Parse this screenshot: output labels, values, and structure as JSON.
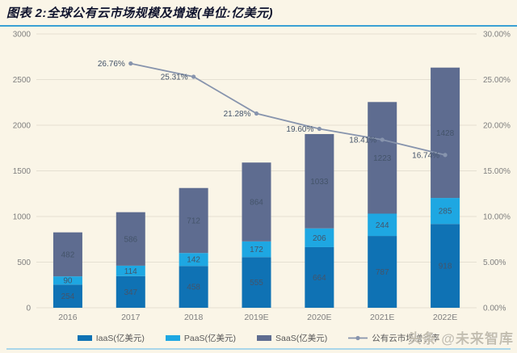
{
  "header": {
    "title": "图表 2:全球公有云市场规模及增速(单位:亿美元)"
  },
  "watermark": "头条 @未来智库",
  "colors": {
    "background": "#faf5e7",
    "title_text": "#10142e",
    "title_underline": "#3aa1d4",
    "bottom_rule": "#a9d6ea",
    "gridline": "#e5e0d2",
    "axis_label": "#7f7f7f",
    "bar_value_label": "#44546a",
    "iaas_blue": "#0f72b4",
    "paas_blue": "#1ea7e2",
    "saas_slate": "#5e6c90",
    "growth_line_gray": "#8794ad"
  },
  "chart_data": {
    "type": "bar",
    "subtype": "stacked-bars-with-growth-line",
    "title": "全球公有云市场规模及增速",
    "unit": "亿美元",
    "categories": [
      "2016",
      "2017",
      "2018",
      "2019E",
      "2020E",
      "2021E",
      "2022E"
    ],
    "series": [
      {
        "name": "IaaS(亿美元)",
        "color": "#0f72b4",
        "values": [
          254,
          347,
          458,
          555,
          664,
          787,
          918
        ]
      },
      {
        "name": "PaaS(亿美元)",
        "color": "#1ea7e2",
        "values": [
          90,
          114,
          142,
          172,
          206,
          244,
          285
        ]
      },
      {
        "name": "SaaS(亿美元)",
        "color": "#5e6c90",
        "values": [
          482,
          586,
          712,
          864,
          1033,
          1223,
          1428
        ]
      }
    ],
    "totals": [
      826,
      1047,
      1312,
      1591,
      1903,
      2254,
      2631
    ],
    "line_series": {
      "name": "公有云市场增长率",
      "color": "#8794ad",
      "x": [
        "2017",
        "2018",
        "2019E",
        "2020E",
        "2021E",
        "2022E"
      ],
      "values_pct": [
        26.76,
        25.31,
        21.28,
        19.6,
        18.41,
        16.74
      ],
      "labels": [
        "26.76%",
        "25.31%",
        "21.28%",
        "19.60%",
        "18.41%",
        "16.74%"
      ]
    },
    "left_axis": {
      "min": 0,
      "max": 3000,
      "step": 500,
      "ticks": [
        "0",
        "500",
        "1000",
        "1500",
        "2000",
        "2500",
        "3000"
      ]
    },
    "right_axis": {
      "min": 0,
      "max": 30,
      "step": 5,
      "ticks": [
        "0.00%",
        "5.00%",
        "10.00%",
        "15.00%",
        "20.00%",
        "25.00%",
        "30.00%"
      ]
    },
    "legend_position": "bottom",
    "grid": true
  }
}
